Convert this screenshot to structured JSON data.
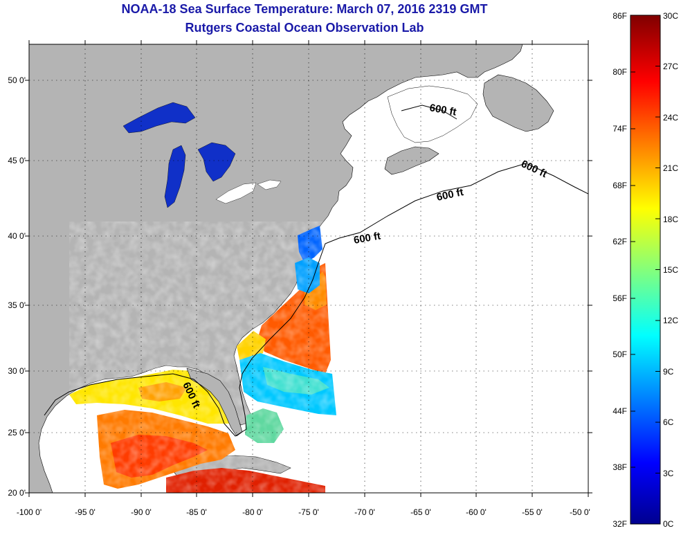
{
  "title": {
    "line1": "NOAA-18 Sea Surface Temperature:  March 07, 2016 2319 GMT",
    "line2": "Rutgers Coastal Ocean Observation Lab"
  },
  "map": {
    "lon_range": [
      -100,
      -50
    ],
    "lat_range": [
      20,
      52.5
    ],
    "lon_ticks": [
      "-100 0'",
      "-95 0'",
      "-90 0'",
      "-85 0'",
      "-80 0'",
      "-75 0'",
      "-70 0'",
      "-65 0'",
      "-60 0'",
      "-55 0'",
      "-50 0'"
    ],
    "lat_ticks": [
      "50 0'",
      "45 0'",
      "40 0'",
      "35 0'",
      "30 0'",
      "25 0'",
      "20 0'"
    ],
    "contour_labels": [
      "600 ft",
      "600 ft",
      "600 ft",
      "600 ft",
      "600 ft"
    ],
    "land_color": "#b4b4b4",
    "no_data_color": "#ffffff"
  },
  "colorbar": {
    "fahrenheit_labels": [
      "86F",
      "80F",
      "74F",
      "68F",
      "62F",
      "56F",
      "50F",
      "44F",
      "38F",
      "32F"
    ],
    "celsius_labels": [
      "30C",
      "27C",
      "24C",
      "21C",
      "18C",
      "15C",
      "12C",
      "9C",
      "6C",
      "3C",
      "0C"
    ],
    "range_celsius": [
      0,
      30
    ],
    "colors": [
      "#00008f",
      "#0000ff",
      "#00ffff",
      "#ffff00",
      "#ff0000",
      "#800000"
    ]
  }
}
